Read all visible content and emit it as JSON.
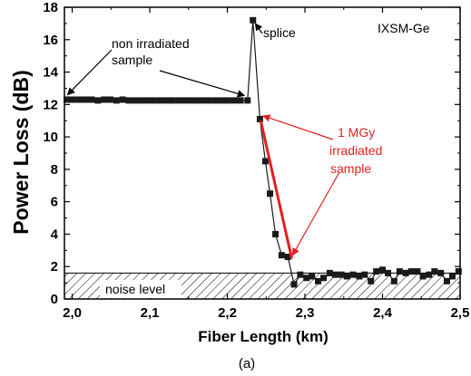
{
  "chart_data": {
    "type": "scatter",
    "xlabel": "Fiber Length (km)",
    "ylabel": "Power Loss (dB)",
    "xlim": [
      1.99,
      2.5
    ],
    "ylim": [
      0,
      18
    ],
    "x_ticks": [
      "2,0",
      "2,1",
      "2,2",
      "2,3",
      "2,4",
      "2,5"
    ],
    "y_ticks": [
      "0",
      "2",
      "4",
      "6",
      "8",
      "10",
      "12",
      "14",
      "16",
      "18"
    ],
    "grid": false,
    "legend": "none",
    "annotations": {
      "sample_label": "IXSM-Ge",
      "non_irradiated": [
        "non irradiated",
        "sample"
      ],
      "splice": "splice",
      "irradiated": [
        "1 MGy",
        "irradiated",
        "sample"
      ],
      "noise": "noise level"
    },
    "caption": "(a)",
    "colors": {
      "data": "#1a1a1a",
      "fit": "#e32020",
      "annotation": "#e32020"
    },
    "noise_level_max": 1.6,
    "series": [
      {
        "marker": "square",
        "x": [
          1.993,
          2.001,
          2.009,
          2.017,
          2.025,
          2.033,
          2.041,
          2.049,
          2.057,
          2.065,
          2.073,
          2.081,
          2.089,
          2.097,
          2.105,
          2.113,
          2.121,
          2.129,
          2.137,
          2.145,
          2.153,
          2.161,
          2.169,
          2.177,
          2.185,
          2.193,
          2.201,
          2.209,
          2.217,
          2.226,
          2.233,
          2.242,
          2.249,
          2.255,
          2.262,
          2.27,
          2.278,
          2.286,
          2.294,
          2.302,
          2.309,
          2.317,
          2.324,
          2.332,
          2.339,
          2.347,
          2.354,
          2.362,
          2.37,
          2.377,
          2.385,
          2.392,
          2.4,
          2.407,
          2.415,
          2.422,
          2.43,
          2.437,
          2.445,
          2.452,
          2.46,
          2.467,
          2.475,
          2.483,
          2.49,
          2.498
        ],
        "y": [
          12.3,
          12.3,
          12.3,
          12.3,
          12.3,
          12.25,
          12.3,
          12.3,
          12.25,
          12.3,
          12.25,
          12.25,
          12.25,
          12.25,
          12.25,
          12.25,
          12.25,
          12.25,
          12.25,
          12.25,
          12.25,
          12.25,
          12.25,
          12.25,
          12.25,
          12.25,
          12.25,
          12.25,
          12.25,
          12.25,
          17.2,
          11.1,
          8.5,
          6.5,
          4.0,
          2.7,
          2.6,
          0.9,
          1.5,
          1.3,
          1.4,
          1.1,
          1.3,
          1.6,
          1.5,
          1.5,
          1.4,
          1.5,
          1.4,
          1.5,
          1.1,
          1.7,
          1.8,
          1.6,
          1.1,
          1.7,
          1.6,
          1.7,
          1.7,
          1.4,
          1.5,
          1.7,
          1.6,
          1.1,
          1.4,
          1.7
        ]
      }
    ],
    "fit_line": {
      "x": [
        2.243,
        2.283
      ],
      "y": [
        11.0,
        2.5
      ]
    }
  }
}
